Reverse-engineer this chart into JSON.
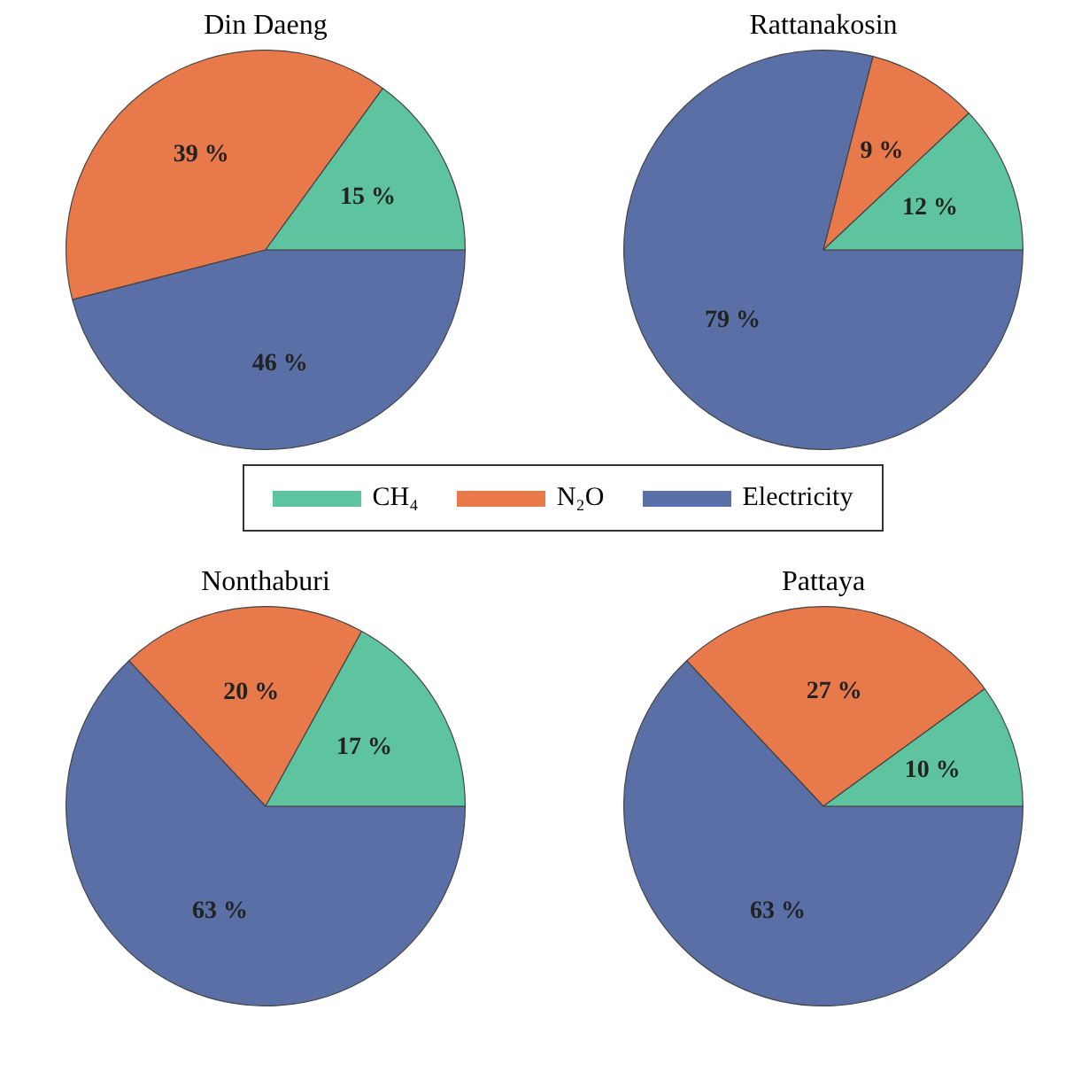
{
  "chart_data": [
    {
      "type": "pie",
      "title": "Din Daeng",
      "categories": [
        "CH₄",
        "N₂O",
        "Electricity"
      ],
      "values": [
        15,
        39,
        46
      ],
      "colors": [
        "#5ec4a0",
        "#e8794b",
        "#5a6fa6"
      ],
      "value_labels": [
        "15 %",
        "39 %",
        "46 %"
      ],
      "legend": "bottom"
    },
    {
      "type": "pie",
      "title": "Rattanakosin",
      "categories": [
        null,
        null,
        null
      ],
      "values": [
        12,
        9,
        79
      ],
      "colors": [
        "#5ec4a0",
        "#e8794b",
        "#5a6fa6"
      ],
      "value_labels": [
        "12 %",
        "9 %",
        "79 %"
      ]
    },
    {
      "type": "pie",
      "title": "Nonthaburi",
      "categories": [
        null,
        null,
        null
      ],
      "values": [
        17,
        20,
        63
      ],
      "colors": [
        "#5ec4a0",
        "#e8794b",
        "#5a6fa6"
      ],
      "value_labels": [
        "17 %",
        "20 %",
        "63 %"
      ]
    },
    {
      "type": "pie",
      "title": "Pattaya",
      "categories": [
        null,
        null,
        null
      ],
      "values": [
        10,
        27,
        63
      ],
      "colors": [
        "#5ec4a0",
        "#e8794b",
        "#5a6fa6"
      ],
      "value_labels": [
        "10 %",
        "27 %",
        "63 %"
      ]
    }
  ]
}
